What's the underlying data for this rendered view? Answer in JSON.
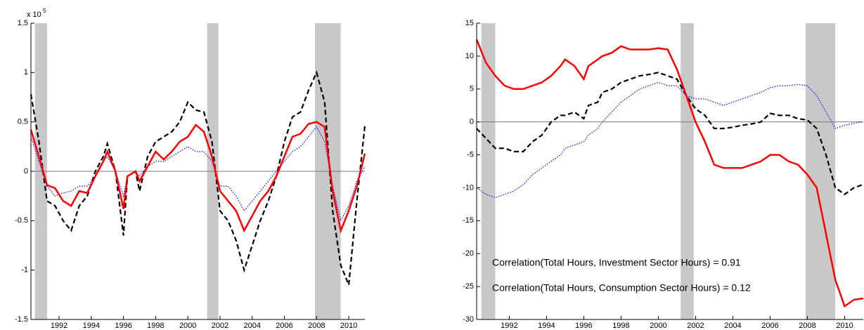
{
  "chart_data": [
    {
      "type": "line",
      "y_multiplier": "x 10",
      "y_multiplier_exponent": "5",
      "x": [
        1990.25,
        1990.75,
        1991.25,
        1991.75,
        1992.25,
        1992.75,
        1993.25,
        1993.75,
        1994.25,
        1994.75,
        1995.0,
        1995.5,
        1996.0,
        1996.25,
        1996.75,
        1997.0,
        1997.5,
        1998.0,
        1998.5,
        1999.0,
        1999.5,
        2000.0,
        2000.5,
        2001.0,
        2001.5,
        2002.0,
        2002.5,
        2003.0,
        2003.5,
        2004.0,
        2004.5,
        2005.0,
        2005.5,
        2006.0,
        2006.5,
        2007.0,
        2007.5,
        2008.0,
        2008.5,
        2009.0,
        2009.5,
        2010.0,
        2010.5,
        2011.0
      ],
      "xlim": [
        1990.25,
        2011
      ],
      "xticks": [
        1992,
        1994,
        1996,
        1998,
        2000,
        2002,
        2004,
        2006,
        2008,
        2010
      ],
      "ylim": [
        -1.5,
        1.5
      ],
      "yticks": [
        -1.5,
        -1,
        -0.5,
        0,
        0.5,
        1,
        1.5
      ],
      "shaded_spans": [
        [
          1990.5,
          1991.25
        ],
        [
          2001.2,
          2001.9
        ],
        [
          2007.9,
          2009.5
        ]
      ],
      "shade_color": "#c8c8c8",
      "zero_line": true,
      "series": [
        {
          "color": "#000000",
          "dash": "dashed",
          "values": [
            0.78,
            0.3,
            -0.3,
            -0.35,
            -0.5,
            -0.6,
            -0.35,
            -0.25,
            0,
            0.15,
            0.28,
            0,
            -0.65,
            -0.05,
            0,
            -0.2,
            0.15,
            0.3,
            0.35,
            0.4,
            0.5,
            0.7,
            0.62,
            0.6,
            0.3,
            -0.4,
            -0.5,
            -0.7,
            -1,
            -0.75,
            -0.5,
            -0.3,
            -0.05,
            0.3,
            0.55,
            0.6,
            0.82,
            1,
            0.7,
            -0.4,
            -0.95,
            -1.15,
            -0.3,
            0.46
          ]
        },
        {
          "color": "#0000ff",
          "dash": "dotted",
          "values": [
            0.35,
            0.1,
            -0.15,
            -0.25,
            -0.22,
            -0.2,
            -0.15,
            -0.15,
            -0.05,
            0.1,
            0.15,
            0,
            -0.25,
            -0.05,
            0,
            -0.05,
            0.05,
            0.1,
            0.1,
            0.15,
            0.2,
            0.25,
            0.2,
            0.2,
            0.1,
            -0.15,
            -0.15,
            -0.25,
            -0.4,
            -0.3,
            -0.2,
            -0.1,
            0,
            0.1,
            0.2,
            0.25,
            0.35,
            0.45,
            0.3,
            -0.15,
            -0.5,
            -0.35,
            -0.1,
            0.05
          ]
        },
        {
          "color": "#ff0000",
          "dash": "solid",
          "values": [
            0.42,
            0.15,
            -0.14,
            -0.17,
            -0.3,
            -0.35,
            -0.2,
            -0.22,
            -0.05,
            0.1,
            0.2,
            0,
            -0.38,
            -0.05,
            0,
            -0.1,
            0.05,
            0.2,
            0.12,
            0.2,
            0.3,
            0.35,
            0.47,
            0.4,
            0.15,
            -0.2,
            -0.3,
            -0.4,
            -0.6,
            -0.45,
            -0.3,
            -0.2,
            -0.05,
            0.15,
            0.35,
            0.38,
            0.48,
            0.5,
            0.45,
            -0.2,
            -0.6,
            -0.4,
            -0.15,
            0.18
          ]
        }
      ]
    },
    {
      "type": "line",
      "x": [
        1990.25,
        1990.75,
        1991.25,
        1991.75,
        1992.25,
        1992.75,
        1993.25,
        1993.75,
        1994.25,
        1994.75,
        1995.0,
        1995.5,
        1996.0,
        1996.25,
        1996.75,
        1997.0,
        1997.5,
        1998.0,
        1998.5,
        1999.0,
        1999.5,
        2000.0,
        2000.5,
        2001.0,
        2001.5,
        2002.0,
        2002.5,
        2003.0,
        2003.5,
        2004.0,
        2004.5,
        2005.0,
        2005.5,
        2006.0,
        2006.5,
        2007.0,
        2007.5,
        2008.0,
        2008.5,
        2009.0,
        2009.5,
        2010.0,
        2010.5,
        2011.0
      ],
      "xlim": [
        1990.25,
        2011
      ],
      "xticks": [
        1992,
        1994,
        1996,
        1998,
        2000,
        2002,
        2004,
        2006,
        2008,
        2010
      ],
      "ylim": [
        -30,
        15
      ],
      "yticks": [
        -30,
        -25,
        -20,
        -15,
        -10,
        -5,
        0,
        5,
        10,
        15
      ],
      "shaded_spans": [
        [
          1990.5,
          1991.25
        ],
        [
          2001.2,
          2001.9
        ],
        [
          2007.9,
          2009.5
        ]
      ],
      "shade_color": "#c8c8c8",
      "zero_line": true,
      "annotations": [
        "Correlation(Total Hours, Investment Sector Hours) = 0.91",
        "Correlation(Total Hours, Consumption Sector Hours) = 0.12"
      ],
      "series": [
        {
          "color": "#000000",
          "dash": "dashed",
          "values": [
            -1,
            -2.5,
            -4,
            -4,
            -4.5,
            -4.5,
            -3,
            -2,
            0,
            1,
            1,
            1.5,
            0.5,
            2.5,
            3,
            4.5,
            5,
            6,
            6.5,
            7,
            7.2,
            7.5,
            7,
            6.5,
            4,
            2,
            1,
            -1,
            -1,
            -0.8,
            -0.5,
            -0.3,
            0,
            1.3,
            1,
            1,
            0.5,
            0.3,
            -1,
            -5,
            -10,
            -11,
            -10,
            -9.5
          ]
        },
        {
          "color": "#0000ff",
          "dash": "dotted",
          "values": [
            -10,
            -11,
            -11.5,
            -11,
            -10.5,
            -9.5,
            -8,
            -7,
            -6,
            -5,
            -4,
            -3.5,
            -3,
            -2,
            -1,
            0,
            1.5,
            3,
            4,
            5,
            5.5,
            6,
            5.5,
            5.5,
            4,
            3.5,
            3.5,
            3,
            2.5,
            3,
            3.5,
            4,
            4.5,
            5.2,
            5.5,
            5.5,
            5.7,
            5.5,
            4,
            1.5,
            -1,
            -0.5,
            -0.2,
            0
          ]
        },
        {
          "color": "#ff0000",
          "dash": "solid",
          "values": [
            12.5,
            9,
            7,
            5.5,
            5,
            5,
            5.5,
            6,
            7,
            8.5,
            9.5,
            8.5,
            6.5,
            8.5,
            9.5,
            10,
            10.5,
            11.5,
            11,
            11,
            11,
            11.2,
            11,
            8,
            4,
            0,
            -3,
            -6.5,
            -7,
            -7,
            -7,
            -6.5,
            -6,
            -5,
            -5,
            -6,
            -6.5,
            -8,
            -10,
            -17,
            -24,
            -28,
            -27,
            -26.8
          ]
        }
      ]
    }
  ]
}
